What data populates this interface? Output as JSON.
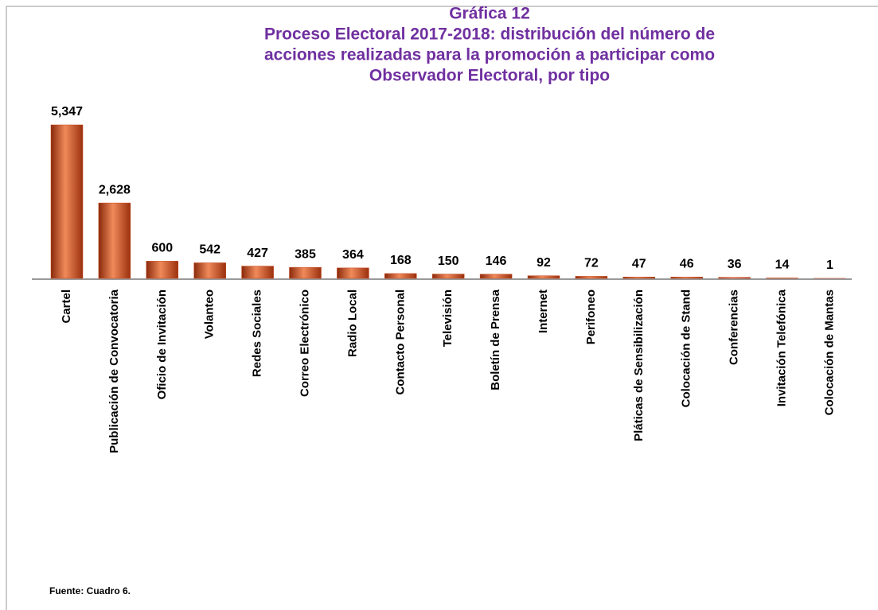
{
  "chart_data": {
    "type": "bar",
    "title": [
      "Gráfica 12",
      "Proceso Electoral 2017-2018: distribución del número de",
      "acciones realizadas para la promoción a participar como",
      "Observador Electoral, por tipo"
    ],
    "categories": [
      "Cartel",
      "Publicación de Convocatoria",
      "Oficio de Invitación",
      "Volanteo",
      "Redes Sociales",
      "Correo Electrónico",
      "Radio Local",
      "Contacto Personal",
      "Televisión",
      "Boletín de Prensa",
      "Internet",
      "Perifoneo",
      "Pláticas de Sensibilización",
      "Colocación de Stand",
      "Conferencias",
      "Invitación Telefónica",
      "Colocación de Mantas"
    ],
    "values": [
      5347,
      2628,
      600,
      542,
      427,
      385,
      364,
      168,
      150,
      146,
      92,
      72,
      47,
      46,
      36,
      14,
      1
    ],
    "value_labels": [
      "5,347",
      "2,628",
      "600",
      "542",
      "427",
      "385",
      "364",
      "168",
      "150",
      "146",
      "92",
      "72",
      "47",
      "46",
      "36",
      "14",
      "1"
    ],
    "color": "#c8481c",
    "footnote": "Fuente:  Cuadro 6."
  }
}
